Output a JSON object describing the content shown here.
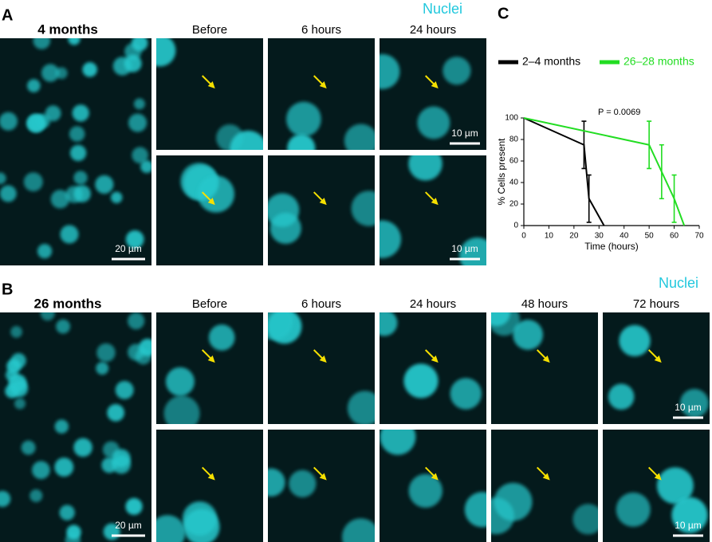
{
  "panel_a": {
    "label": "A",
    "stain": "Nuclei",
    "age": "4 months",
    "timepoints": [
      "Before",
      "6 hours",
      "24 hours"
    ],
    "overview_scale": "20 µm",
    "detail_scale": [
      "10 µm",
      "10 µm"
    ]
  },
  "panel_b": {
    "label": "B",
    "stain": "Nuclei",
    "age": "26 months",
    "timepoints": [
      "Before",
      "6 hours",
      "24 hours",
      "48 hours",
      "72 hours"
    ],
    "overview_scale": "20 µm",
    "detail_scale": [
      "10 µm",
      "10 µm"
    ]
  },
  "chart_data": {
    "type": "line",
    "panel_label": "C",
    "x_label": "Time (hours)",
    "y_label": "% Cells present",
    "annotation": "P = 0.0069",
    "xlim": [
      0,
      70
    ],
    "xticks": [
      0,
      10,
      20,
      30,
      40,
      50,
      60,
      70
    ],
    "ylim": [
      0,
      100
    ],
    "yticks": [
      0,
      20,
      40,
      60,
      80,
      100
    ],
    "series": [
      {
        "name": "2–4 months",
        "color": "#000000",
        "x": [
          0,
          24,
          26,
          32
        ],
        "values": [
          100,
          75,
          25,
          0
        ],
        "errors": [
          null,
          22,
          22,
          null
        ]
      },
      {
        "name": "26–28 months",
        "color": "#22dd22",
        "x": [
          0,
          50,
          55,
          60,
          64
        ],
        "values": [
          100,
          75,
          50,
          25,
          0
        ],
        "errors": [
          null,
          22,
          25,
          22,
          null
        ]
      }
    ]
  }
}
